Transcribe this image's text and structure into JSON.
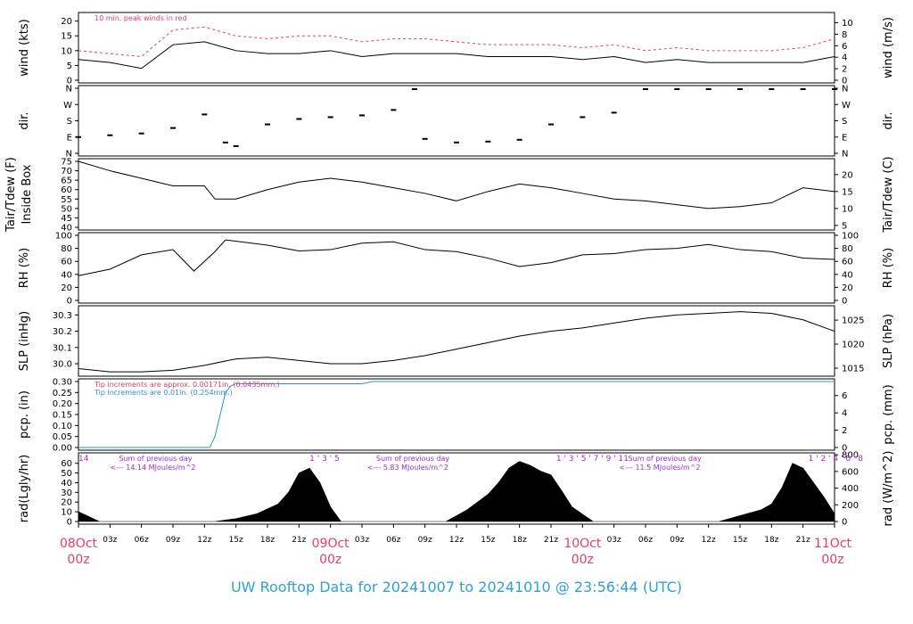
{
  "title": "UW Rooftop Data for 20241007  to  20241010 @ 23:56:44  (UTC)",
  "colors": {
    "line": "#000000",
    "peak": "#e0406a",
    "precip_line": "#2f8fd0",
    "annotation_purple": "#9b30c8",
    "date_labels": "#e0406a",
    "title": "#2f9fd8"
  },
  "time_axis": {
    "hour_ticks": [
      "03z",
      "06z",
      "09z",
      "12z",
      "15z",
      "18z",
      "21z",
      "03z",
      "06z",
      "09z",
      "12z",
      "15z",
      "18z",
      "21z",
      "03z",
      "06z",
      "09z",
      "12z",
      "15z",
      "18z",
      "21z"
    ],
    "date_labels": [
      {
        "day": "08Oct",
        "hour": "00z"
      },
      {
        "day": "09Oct",
        "hour": "00z"
      },
      {
        "day": "10Oct",
        "hour": "00z"
      },
      {
        "day": "11Oct",
        "hour": "00z"
      }
    ]
  },
  "chart_data": [
    {
      "id": "wind",
      "type": "line",
      "ylabel_left": "wind (kts)",
      "ylabel_right": "wind (m/s)",
      "ylim": [
        0,
        22
      ],
      "yticks_left": [
        "0",
        "5",
        "10",
        "15",
        "20"
      ],
      "yticks_left_values": [
        0,
        5,
        10,
        15,
        20
      ],
      "yticks_right": [
        "0",
        "2",
        "4",
        "6",
        "8",
        "10"
      ],
      "yticks_right_values": [
        0,
        2,
        4,
        6,
        8,
        10
      ],
      "annotation": "10 min. peak winds in red",
      "series": [
        {
          "name": "wind",
          "x_hours": [
            0,
            3,
            6,
            9,
            12,
            15,
            18,
            21,
            24,
            27,
            30,
            33,
            36,
            39,
            42,
            45,
            48,
            51,
            54,
            57,
            60,
            63,
            66,
            69,
            72
          ],
          "values": [
            7,
            6,
            4,
            12,
            13,
            10,
            9,
            9,
            10,
            8,
            9,
            9,
            9,
            8,
            8,
            8,
            7,
            8,
            6,
            7,
            6,
            6,
            6,
            6,
            8
          ]
        },
        {
          "name": "peak",
          "x_hours": [
            0,
            3,
            6,
            9,
            12,
            15,
            18,
            21,
            24,
            27,
            30,
            33,
            36,
            39,
            42,
            45,
            48,
            51,
            54,
            57,
            60,
            63,
            66,
            69,
            72
          ],
          "values": [
            10,
            9,
            8,
            17,
            18,
            15,
            14,
            15,
            15,
            13,
            14,
            14,
            13,
            12,
            12,
            12,
            11,
            12,
            10,
            11,
            10,
            10,
            10,
            11,
            14
          ]
        }
      ]
    },
    {
      "id": "dir",
      "type": "scatter",
      "ylabel_left": "dir.",
      "ylabel_right": "dir.",
      "yticks_left": [
        "N",
        "E",
        "S",
        "W",
        "N"
      ],
      "yticks_left_values": [
        0,
        90,
        180,
        270,
        360
      ],
      "yticks_right": [
        "N",
        "E",
        "S",
        "W",
        "N"
      ],
      "yticks_right_values": [
        0,
        90,
        180,
        270,
        360
      ],
      "ylim": [
        0,
        360
      ],
      "series": [
        {
          "name": "direction",
          "x_hours": [
            0,
            3,
            6,
            9,
            12,
            14,
            15,
            18,
            21,
            24,
            27,
            30,
            32,
            33,
            36,
            39,
            42,
            45,
            48,
            51,
            54,
            57,
            60,
            63,
            66,
            69,
            72
          ],
          "values": [
            90,
            100,
            110,
            140,
            215,
            60,
            40,
            160,
            190,
            200,
            210,
            240,
            355,
            80,
            60,
            65,
            75,
            160,
            200,
            225,
            355,
            355,
            355,
            355,
            355,
            355,
            355
          ]
        }
      ]
    },
    {
      "id": "temp",
      "type": "line",
      "ylabel_left": "Tair/Tdew (F)",
      "ylabel_left2": "Inside Box",
      "ylabel_right": "Tair/Tdew (C)",
      "ylim": [
        40,
        75
      ],
      "yticks_left": [
        "40",
        "45",
        "50",
        "55",
        "60",
        "65",
        "70",
        "75"
      ],
      "yticks_left_values": [
        40,
        45,
        50,
        55,
        60,
        65,
        70,
        75
      ],
      "yticks_right": [
        "5",
        "10",
        "15",
        "20"
      ],
      "yticks_right_values": [
        5,
        10,
        15,
        20
      ],
      "series": [
        {
          "name": "Tair",
          "x_hours": [
            0,
            3,
            6,
            9,
            12,
            13,
            15,
            18,
            21,
            24,
            27,
            30,
            33,
            36,
            39,
            42,
            45,
            48,
            51,
            54,
            57,
            60,
            63,
            66,
            69,
            72
          ],
          "values": [
            75,
            70,
            66,
            62,
            62,
            55,
            55,
            60,
            64,
            66,
            64,
            61,
            58,
            54,
            59,
            63,
            61,
            58,
            55,
            54,
            52,
            50,
            51,
            53,
            61,
            59
          ]
        }
      ]
    },
    {
      "id": "rh",
      "type": "line",
      "ylabel_left": "RH (%)",
      "ylabel_right": "RH (%)",
      "ylim": [
        0,
        100
      ],
      "yticks_left": [
        "0",
        "20",
        "40",
        "60",
        "80",
        "100"
      ],
      "yticks_left_values": [
        0,
        20,
        40,
        60,
        80,
        100
      ],
      "yticks_right": [
        "0",
        "20",
        "40",
        "60",
        "80",
        "100"
      ],
      "yticks_right_values": [
        0,
        20,
        40,
        60,
        80,
        100
      ],
      "series": [
        {
          "name": "RH",
          "x_hours": [
            0,
            3,
            6,
            9,
            11,
            13,
            14,
            18,
            21,
            24,
            27,
            30,
            33,
            36,
            39,
            42,
            45,
            48,
            51,
            54,
            57,
            60,
            63,
            66,
            69,
            72
          ],
          "values": [
            38,
            48,
            70,
            78,
            45,
            75,
            93,
            85,
            76,
            78,
            88,
            90,
            78,
            75,
            65,
            52,
            58,
            70,
            72,
            78,
            80,
            86,
            78,
            75,
            65,
            63
          ]
        }
      ]
    },
    {
      "id": "slp",
      "type": "line",
      "ylabel_left": "SLP (inHg)",
      "ylabel_right": "SLP (hPa)",
      "ylim": [
        29.94,
        30.34
      ],
      "yticks_left": [
        "30.0",
        "30.1",
        "30.2",
        "30.3"
      ],
      "yticks_left_values": [
        30.0,
        30.1,
        30.2,
        30.3
      ],
      "yticks_right": [
        "1015",
        "1020",
        "1025"
      ],
      "yticks_right_values": [
        1015,
        1020,
        1025
      ],
      "series": [
        {
          "name": "SLP",
          "x_hours": [
            0,
            3,
            6,
            9,
            12,
            15,
            18,
            21,
            24,
            27,
            30,
            33,
            36,
            39,
            42,
            45,
            48,
            51,
            54,
            57,
            60,
            63,
            66,
            69,
            72
          ],
          "values": [
            29.97,
            29.95,
            29.95,
            29.96,
            29.99,
            30.03,
            30.04,
            30.02,
            30.0,
            30.0,
            30.02,
            30.05,
            30.09,
            30.13,
            30.17,
            30.2,
            30.22,
            30.25,
            30.28,
            30.3,
            30.31,
            30.32,
            30.31,
            30.27,
            30.2
          ]
        }
      ]
    },
    {
      "id": "pcp",
      "type": "line",
      "ylabel_left": "pcp. (in)",
      "ylabel_right": "pcp. (mm)",
      "ylim": [
        0,
        0.3
      ],
      "yticks_left": [
        "0.00",
        "0.05",
        "0.10",
        "0.15",
        "0.20",
        "0.25",
        "0.30"
      ],
      "yticks_left_values": [
        0,
        0.05,
        0.1,
        0.15,
        0.2,
        0.25,
        0.3
      ],
      "yticks_right": [
        "0",
        "2",
        "4",
        "6"
      ],
      "yticks_right_values": [
        0,
        2,
        4,
        6
      ],
      "notes": [
        {
          "text": "Tip increments are approx. 0.00171in. (0.0435mm.)",
          "color": "red"
        },
        {
          "text": "Tip increments are 0.01in. (0.254mm.)",
          "color": "blue"
        }
      ],
      "series": [
        {
          "name": "precip",
          "x_hours": [
            0,
            12.5,
            13,
            13.5,
            14,
            14.5,
            15,
            27,
            28,
            72
          ],
          "values": [
            0,
            0,
            0.05,
            0.15,
            0.25,
            0.28,
            0.29,
            0.29,
            0.3,
            0.3
          ]
        }
      ]
    },
    {
      "id": "rad",
      "type": "area",
      "ylabel_left": "rad(Lgly/hr)",
      "ylabel_right": "rad (W/m^2)",
      "ylim": [
        0,
        68
      ],
      "yticks_left": [
        "0",
        "10",
        "20",
        "30",
        "40",
        "50",
        "60"
      ],
      "yticks_left_values": [
        0,
        10,
        20,
        30,
        40,
        50,
        60
      ],
      "yticks_right": [
        "0",
        "200",
        "400",
        "600",
        "800"
      ],
      "yticks_right_values": [
        0,
        200,
        400,
        600,
        800
      ],
      "day_markers": [
        {
          "labels": "14",
          "x_hour": 0
        },
        {
          "labels": "1 ' 3 ' 5",
          "x_hour": 22
        },
        {
          "labels": "1 ' 3 ' 5 ' 7 ' 9 ' 11",
          "x_hour": 45.5
        },
        {
          "labels": "1 ' 2 ' 4 ' 6 ' 8",
          "x_hour": 69.5
        }
      ],
      "sums": [
        {
          "line1": "Sum of previous day",
          "line2": "<--- 14.14 MJoules/m^2",
          "x_hour": 3
        },
        {
          "line1": "Sum of previous day",
          "line2": "<--- 5.83 MJoules/m^2",
          "x_hour": 27.5
        },
        {
          "line1": "Sum of previous day",
          "line2": "<--- 11.5 MJoules/m^2",
          "x_hour": 51.5
        }
      ],
      "series": [
        {
          "name": "radiation",
          "x_hours": [
            0,
            1,
            2,
            13,
            15,
            17,
            19,
            20,
            21,
            22,
            23,
            24,
            25,
            35,
            37,
            39,
            40,
            41,
            42,
            43,
            44,
            45,
            46,
            47,
            49,
            61,
            63,
            65,
            66,
            67,
            68,
            69,
            70,
            71,
            72
          ],
          "values": [
            10,
            5,
            0,
            0,
            3,
            8,
            18,
            30,
            50,
            55,
            40,
            15,
            0,
            0,
            12,
            28,
            40,
            55,
            62,
            58,
            52,
            48,
            32,
            15,
            0,
            0,
            6,
            12,
            18,
            35,
            60,
            55,
            40,
            25,
            8
          ]
        }
      ]
    }
  ]
}
